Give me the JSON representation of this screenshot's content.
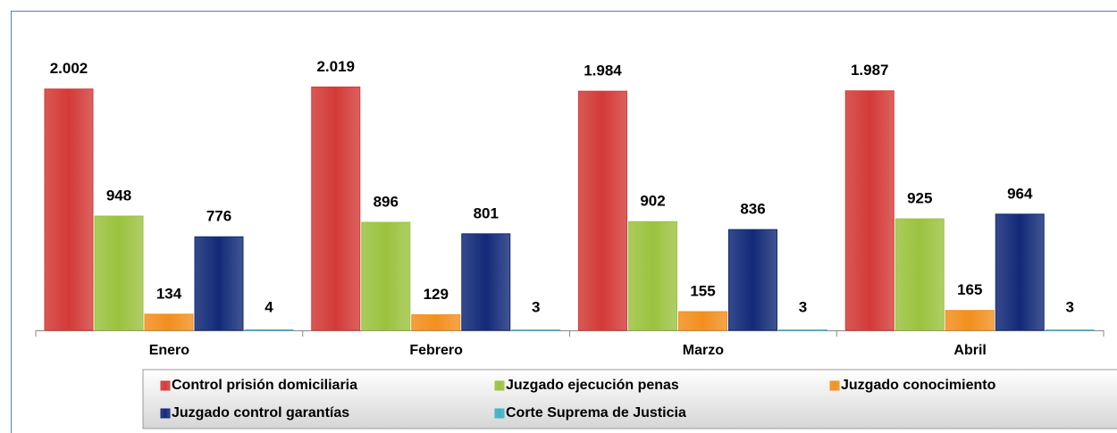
{
  "chart_data": {
    "type": "bar",
    "categories": [
      "Enero",
      "Febrero",
      "Marzo",
      "Abril"
    ],
    "series": [
      {
        "name": "Control prisión domiciliaria",
        "color": "#d33a37",
        "values": [
          2002,
          2019,
          1984,
          1987
        ],
        "value_labels": [
          "2.002",
          "2.019",
          "1.984",
          "1.987"
        ]
      },
      {
        "name": "Juzgado ejecución penas",
        "color": "#9bc23f",
        "values": [
          948,
          896,
          902,
          925
        ]
      },
      {
        "name": "Juzgado conocimiento",
        "color": "#f28f1e",
        "values": [
          134,
          129,
          155,
          165
        ]
      },
      {
        "name": "Juzgado control garantías",
        "color": "#122a78",
        "values": [
          776,
          801,
          836,
          964
        ]
      },
      {
        "name": "Corte Suprema de Justicia",
        "color": "#3fb2c8",
        "values": [
          4,
          3,
          3,
          3
        ]
      }
    ]
  }
}
